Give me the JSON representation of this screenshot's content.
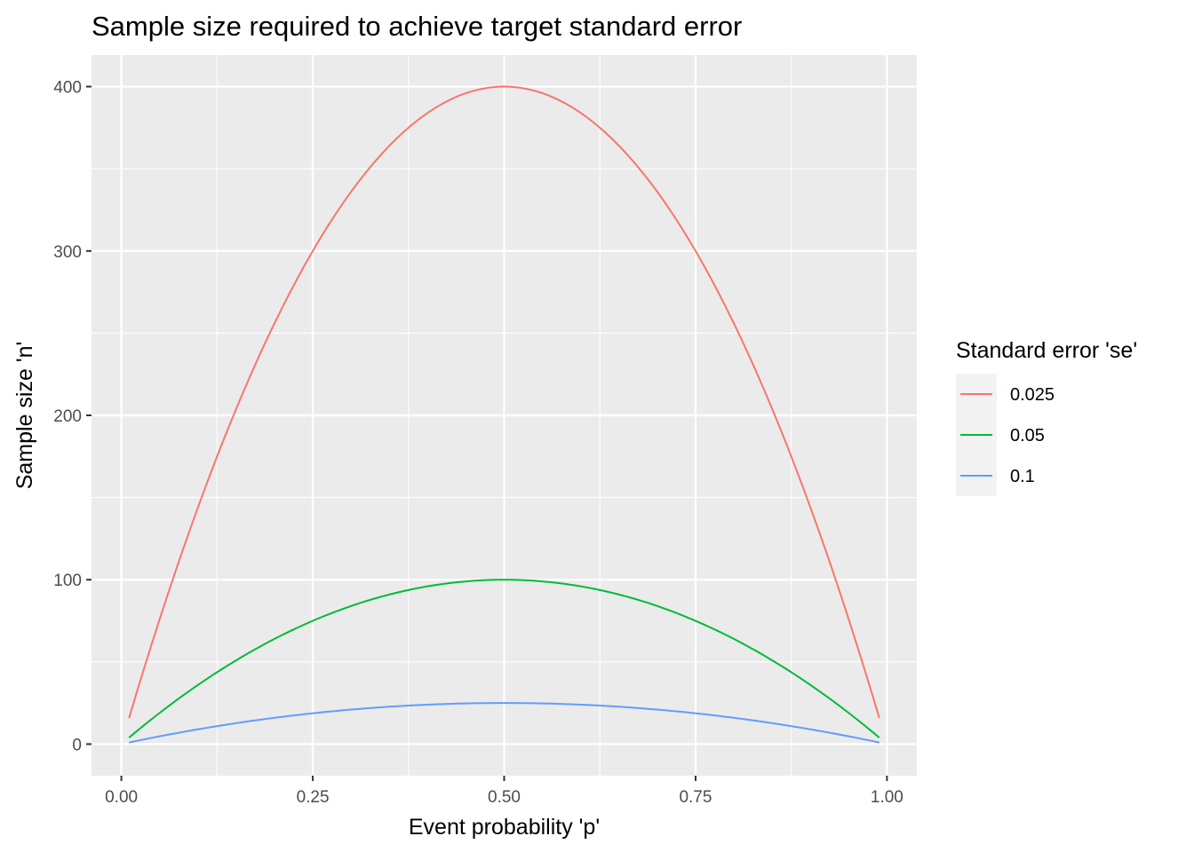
{
  "chart_data": {
    "type": "line",
    "title": "Sample size required to achieve target standard error",
    "xlabel": "Event probability 'p'",
    "ylabel": "Sample size 'n'",
    "xlim": [
      -0.039,
      1.039
    ],
    "ylim": [
      -19.2,
      419.2
    ],
    "x_ticks": [
      0,
      0.25,
      0.5,
      0.75,
      1
    ],
    "x_tick_labels": [
      "0.00",
      "0.25",
      "0.50",
      "0.75",
      "1.00"
    ],
    "y_ticks": [
      0,
      100,
      200,
      300,
      400
    ],
    "y_tick_labels": [
      "0",
      "100",
      "200",
      "300",
      "400"
    ],
    "grid": true,
    "background": "#ebebeb",
    "legend": {
      "title": "Standard error 'se'",
      "position": "right"
    },
    "x": [
      0.01,
      0.02,
      0.03,
      0.04,
      0.05,
      0.06,
      0.07,
      0.08,
      0.09,
      0.1,
      0.11,
      0.12,
      0.13,
      0.14,
      0.15,
      0.16,
      0.17,
      0.18,
      0.19,
      0.2,
      0.21,
      0.22,
      0.23,
      0.24,
      0.25,
      0.26,
      0.27,
      0.28,
      0.29,
      0.3,
      0.31,
      0.32,
      0.33,
      0.34,
      0.35,
      0.36,
      0.37,
      0.38,
      0.39,
      0.4,
      0.41,
      0.42,
      0.43,
      0.44,
      0.45,
      0.46,
      0.47,
      0.48,
      0.49,
      0.5,
      0.51,
      0.52,
      0.53,
      0.54,
      0.55,
      0.56,
      0.57,
      0.58,
      0.59,
      0.6,
      0.61,
      0.62,
      0.63,
      0.64,
      0.65,
      0.66,
      0.67,
      0.68,
      0.69,
      0.7,
      0.71,
      0.72,
      0.73,
      0.74,
      0.75,
      0.76,
      0.77,
      0.78,
      0.79,
      0.8,
      0.81,
      0.82,
      0.83,
      0.84,
      0.85,
      0.86,
      0.87,
      0.88,
      0.89,
      0.9,
      0.91,
      0.92,
      0.93,
      0.94,
      0.95,
      0.96,
      0.97,
      0.98,
      0.99
    ],
    "series": [
      {
        "name": "0.025",
        "color": "#f8766d",
        "values": [
          15.84,
          31.36,
          46.56,
          61.44,
          76.0,
          90.24,
          104.16,
          117.76,
          131.04,
          144.0,
          156.64,
          168.96,
          180.96,
          192.64,
          204.0,
          215.04,
          225.76,
          236.16,
          246.24,
          256.0,
          265.44,
          274.56,
          283.36,
          291.84,
          300.0,
          307.84,
          315.36,
          322.56,
          329.44,
          336.0,
          342.24,
          348.16,
          353.76,
          359.04,
          364.0,
          368.64,
          372.96,
          376.96,
          380.64,
          384.0,
          387.04,
          389.76,
          392.16,
          394.24,
          396.0,
          397.44,
          398.56,
          399.36,
          399.84,
          400.0,
          399.84,
          399.36,
          398.56,
          397.44,
          396.0,
          394.24,
          392.16,
          389.76,
          387.04,
          384.0,
          380.64,
          376.96,
          372.96,
          368.64,
          364.0,
          359.04,
          353.76,
          348.16,
          342.24,
          336.0,
          329.44,
          322.56,
          315.36,
          307.84,
          300.0,
          291.84,
          283.36,
          274.56,
          265.44,
          256.0,
          246.24,
          236.16,
          225.76,
          215.04,
          204.0,
          192.64,
          180.96,
          168.96,
          156.64,
          144.0,
          131.04,
          117.76,
          104.16,
          90.24,
          76.0,
          61.44,
          46.56,
          31.36,
          15.84
        ]
      },
      {
        "name": "0.05",
        "color": "#00ba38",
        "values": [
          3.96,
          7.84,
          11.64,
          15.36,
          19.0,
          22.56,
          26.04,
          29.44,
          32.76,
          36.0,
          39.16,
          42.24,
          45.24,
          48.16,
          51.0,
          53.76,
          56.44,
          59.04,
          61.56,
          64.0,
          66.36,
          68.64,
          70.84,
          72.96,
          75.0,
          76.96,
          78.84,
          80.64,
          82.36,
          84.0,
          85.56,
          87.04,
          88.44,
          89.76,
          91.0,
          92.16,
          93.24,
          94.24,
          95.16,
          96.0,
          96.76,
          97.44,
          98.04,
          98.56,
          99.0,
          99.36,
          99.64,
          99.84,
          99.96,
          100.0,
          99.96,
          99.84,
          99.64,
          99.36,
          99.0,
          98.56,
          98.04,
          97.44,
          96.76,
          96.0,
          95.16,
          94.24,
          93.24,
          92.16,
          91.0,
          89.76,
          88.44,
          87.04,
          85.56,
          84.0,
          82.36,
          80.64,
          78.84,
          76.96,
          75.0,
          72.96,
          70.84,
          68.64,
          66.36,
          64.0,
          61.56,
          59.04,
          56.44,
          53.76,
          51.0,
          48.16,
          45.24,
          42.24,
          39.16,
          36.0,
          32.76,
          29.44,
          26.04,
          22.56,
          19.0,
          15.36,
          11.64,
          7.84,
          3.96
        ]
      },
      {
        "name": "0.1",
        "color": "#619cff",
        "values": [
          0.99,
          1.96,
          2.91,
          3.84,
          4.75,
          5.64,
          6.51,
          7.36,
          8.19,
          9.0,
          9.79,
          10.56,
          11.31,
          12.04,
          12.75,
          13.44,
          14.11,
          14.76,
          15.39,
          16.0,
          16.59,
          17.16,
          17.71,
          18.24,
          18.75,
          19.24,
          19.71,
          20.16,
          20.59,
          21.0,
          21.39,
          21.76,
          22.11,
          22.44,
          22.75,
          23.04,
          23.31,
          23.56,
          23.79,
          24.0,
          24.19,
          24.36,
          24.51,
          24.64,
          24.75,
          24.84,
          24.91,
          24.96,
          24.99,
          25.0,
          24.99,
          24.96,
          24.91,
          24.84,
          24.75,
          24.64,
          24.51,
          24.36,
          24.19,
          24.0,
          23.79,
          23.56,
          23.31,
          23.04,
          22.75,
          22.44,
          22.11,
          21.76,
          21.39,
          21.0,
          20.59,
          20.16,
          19.71,
          19.24,
          18.75,
          18.24,
          17.71,
          17.16,
          16.59,
          16.0,
          15.39,
          14.76,
          14.11,
          13.44,
          12.75,
          12.04,
          11.31,
          10.56,
          9.79,
          9.0,
          8.19,
          7.36,
          6.51,
          5.64,
          4.75,
          3.84,
          2.91,
          1.96,
          0.99
        ]
      }
    ]
  }
}
